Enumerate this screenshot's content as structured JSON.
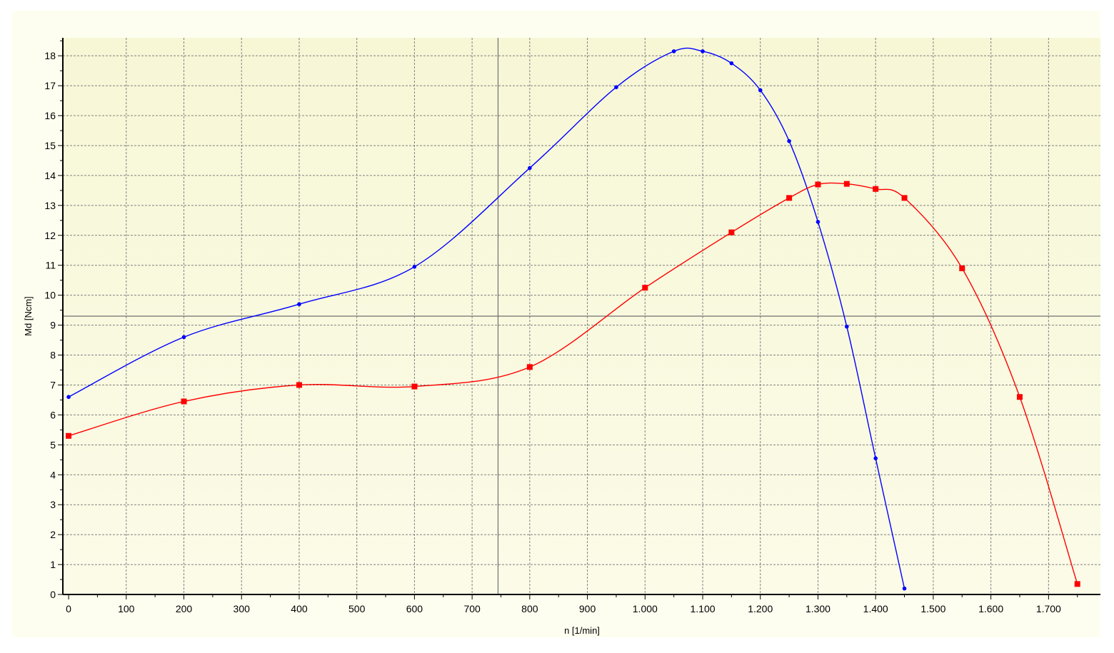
{
  "chart_data": {
    "type": "line",
    "title": "",
    "xlabel": "n [1/min]",
    "ylabel": "Md [Ncm]",
    "xlim": [
      -10,
      1790
    ],
    "ylim": [
      0,
      18.6
    ],
    "x_ticks": [
      0,
      100,
      200,
      300,
      400,
      500,
      600,
      700,
      800,
      900,
      1000,
      1100,
      1200,
      1300,
      1400,
      1500,
      1600,
      1700
    ],
    "x_tick_labels": [
      "0",
      "100",
      "200",
      "300",
      "400",
      "500",
      "600",
      "700",
      "800",
      "900",
      "1.000",
      "1.100",
      "1.200",
      "1.300",
      "1.400",
      "1.500",
      "1.600",
      "1.700"
    ],
    "y_ticks": [
      0,
      1,
      2,
      3,
      4,
      5,
      6,
      7,
      8,
      9,
      10,
      11,
      12,
      13,
      14,
      15,
      16,
      17,
      18
    ],
    "y_tick_labels": [
      "0",
      "1",
      "2",
      "3",
      "4",
      "5",
      "6",
      "7",
      "8",
      "9",
      "10",
      "11",
      "12",
      "13",
      "14",
      "15",
      "16",
      "17",
      "18"
    ],
    "grid": true,
    "legend": "none",
    "crosshair": {
      "x": 745,
      "y": 9.3
    },
    "series": [
      {
        "color": "#0000ff",
        "marker": "circle",
        "points": [
          [
            0,
            6.6
          ],
          [
            200,
            8.6
          ],
          [
            400,
            9.7
          ],
          [
            600,
            10.95
          ],
          [
            800,
            14.25
          ],
          [
            950,
            16.95
          ],
          [
            1050,
            18.15
          ],
          [
            1100,
            18.15
          ],
          [
            1150,
            17.75
          ],
          [
            1200,
            16.85
          ],
          [
            1250,
            15.15
          ],
          [
            1300,
            12.45
          ],
          [
            1350,
            8.95
          ],
          [
            1400,
            4.55
          ],
          [
            1450,
            0.2
          ]
        ]
      },
      {
        "color": "#ff0000",
        "marker": "square",
        "points": [
          [
            0,
            5.3
          ],
          [
            200,
            6.45
          ],
          [
            400,
            7.0
          ],
          [
            600,
            6.95
          ],
          [
            800,
            7.6
          ],
          [
            1000,
            10.25
          ],
          [
            1150,
            12.1
          ],
          [
            1250,
            13.25
          ],
          [
            1300,
            13.7
          ],
          [
            1350,
            13.72
          ],
          [
            1400,
            13.55
          ],
          [
            1450,
            13.25
          ],
          [
            1550,
            10.9
          ],
          [
            1650,
            6.6
          ],
          [
            1750,
            0.35
          ]
        ]
      }
    ]
  },
  "colors": {
    "plot_background_top": "#f7f7d6",
    "plot_background_bottom": "#fbfbe8",
    "outer_background": "#fefef0",
    "grid": "#808080",
    "crosshair": "#707070"
  }
}
